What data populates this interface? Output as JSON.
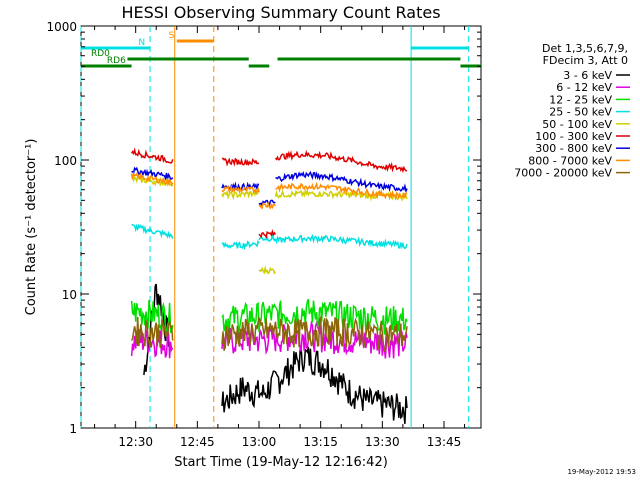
{
  "chart_data": {
    "type": "line",
    "title": "HESSI Observing Summary Count Rates",
    "xlabel": "Start Time (19-May-12 12:16:42)",
    "ylabel": "Count Rate (s⁻¹ detector⁻¹)",
    "yscale": "log",
    "ylim": [
      1,
      1000
    ],
    "xlim": [
      "12:16:42",
      "13:54:00"
    ],
    "x_ticks": [
      "12:30",
      "12:45",
      "13:00",
      "13:15",
      "13:30",
      "13:45"
    ],
    "y_ticks": [
      "1",
      "10",
      "100",
      "1000"
    ],
    "legend_header": [
      "Det 1,3,5,6,7,9,",
      "FDecim 3, Att 0"
    ],
    "legend_placement": "right",
    "series": [
      {
        "name": "3 - 6 keV",
        "color": "#000000",
        "segments": [
          {
            "x": [
              "12:32",
              "12:33",
              "12:34",
              "12:35",
              "12:36",
              "12:37",
              "12:38"
            ],
            "y": [
              2.5,
              4,
              7,
              11,
              9,
              6,
              5
            ]
          },
          {
            "x": [
              "12:51",
              "12:56",
              "13:01",
              "13:06",
              "13:11",
              "13:16",
              "13:21",
              "13:26",
              "13:31",
              "13:36"
            ],
            "y": [
              1.5,
              2,
              1.8,
              2.5,
              3.5,
              3,
              2,
              1.6,
              1.5,
              1.4
            ]
          }
        ]
      },
      {
        "name": "6 - 12 keV",
        "color": "#e000e0",
        "segments": [
          {
            "x": [
              "12:29",
              "12:33",
              "12:37",
              "12:39"
            ],
            "y": [
              4.5,
              4.6,
              4.4,
              4.3
            ]
          },
          {
            "x": [
              "12:51",
              "12:56",
              "13:01",
              "13:06",
              "13:11",
              "13:16",
              "13:21",
              "13:26",
              "13:31",
              "13:36"
            ],
            "y": [
              4.5,
              4.6,
              4.6,
              4.8,
              5,
              4.8,
              4.6,
              4.5,
              4.4,
              4.3
            ]
          }
        ]
      },
      {
        "name": "12 - 25 keV",
        "color": "#00e000",
        "segments": [
          {
            "x": [
              "12:29",
              "12:33",
              "12:37",
              "12:39"
            ],
            "y": [
              7.5,
              7.3,
              7,
              6.8
            ]
          },
          {
            "x": [
              "12:51",
              "12:56",
              "13:01",
              "13:06",
              "13:11",
              "13:16",
              "13:21",
              "13:26",
              "13:31",
              "13:36"
            ],
            "y": [
              6.5,
              6.8,
              7,
              7.2,
              7.5,
              7.3,
              7,
              6.8,
              6.6,
              6.5
            ]
          }
        ]
      },
      {
        "name": "25 - 50 keV",
        "color": "#00e0e0",
        "segments": [
          {
            "x": [
              "12:29",
              "12:33",
              "12:37",
              "12:39"
            ],
            "y": [
              32,
              30,
              28,
              27
            ]
          },
          {
            "x": [
              "12:51",
              "12:55",
              "13:00"
            ],
            "y": [
              23,
              23,
              24
            ]
          },
          {
            "x": [
              "13:00",
              "13:04"
            ],
            "y": [
              26,
              26
            ]
          },
          {
            "x": [
              "13:04",
              "13:10",
              "13:16",
              "13:22",
              "13:28",
              "13:36"
            ],
            "y": [
              25,
              26,
              26,
              25,
              24,
              23
            ]
          }
        ]
      },
      {
        "name": "50 - 100 keV",
        "color": "#d0d000",
        "segments": [
          {
            "x": [
              "12:29",
              "12:33",
              "12:37",
              "12:39"
            ],
            "y": [
              72,
              70,
              68,
              67
            ]
          },
          {
            "x": [
              "12:51",
              "12:55",
              "13:00"
            ],
            "y": [
              55,
              55,
              57
            ]
          },
          {
            "x": [
              "13:00",
              "13:04"
            ],
            "y": [
              15,
              15
            ]
          },
          {
            "x": [
              "13:04",
              "13:10",
              "13:16",
              "13:22",
              "13:28",
              "13:36"
            ],
            "y": [
              55,
              56,
              56,
              55,
              54,
              53
            ]
          }
        ]
      },
      {
        "name": "100 - 300 keV",
        "color": "#e00000",
        "segments": [
          {
            "x": [
              "12:29",
              "12:33",
              "12:37",
              "12:39"
            ],
            "y": [
              115,
              108,
              102,
              97
            ]
          },
          {
            "x": [
              "12:51",
              "12:55",
              "13:00"
            ],
            "y": [
              98,
              97,
              96
            ]
          },
          {
            "x": [
              "13:00",
              "13:04"
            ],
            "y": [
              28,
              28
            ]
          },
          {
            "x": [
              "13:04",
              "13:10",
              "13:16",
              "13:22",
              "13:28",
              "13:36"
            ],
            "y": [
              105,
              110,
              108,
              100,
              90,
              86
            ]
          }
        ]
      },
      {
        "name": "300 - 800 keV",
        "color": "#0000e0",
        "segments": [
          {
            "x": [
              "12:29",
              "12:33",
              "12:37",
              "12:39"
            ],
            "y": [
              84,
              80,
              77,
              74
            ]
          },
          {
            "x": [
              "12:51",
              "12:55",
              "13:00"
            ],
            "y": [
              64,
              63,
              63
            ]
          },
          {
            "x": [
              "13:00",
              "13:04"
            ],
            "y": [
              48,
              48
            ]
          },
          {
            "x": [
              "13:04",
              "13:10",
              "13:16",
              "13:22",
              "13:28",
              "13:36"
            ],
            "y": [
              72,
              78,
              76,
              70,
              64,
              61
            ]
          }
        ]
      },
      {
        "name": "800 - 7000 keV",
        "color": "#ff8c00",
        "segments": [
          {
            "x": [
              "12:29",
              "12:33",
              "12:37",
              "12:39"
            ],
            "y": [
              76,
              73,
              70,
              68
            ]
          },
          {
            "x": [
              "12:51",
              "12:55",
              "13:00"
            ],
            "y": [
              61,
              60,
              60
            ]
          },
          {
            "x": [
              "13:00",
              "13:04"
            ],
            "y": [
              46,
              46
            ]
          },
          {
            "x": [
              "13:04",
              "13:10",
              "13:16",
              "13:22",
              "13:28",
              "13:36"
            ],
            "y": [
              62,
              64,
              63,
              60,
              56,
              54
            ]
          }
        ]
      },
      {
        "name": "7000 - 20000 keV",
        "color": "#8b6508",
        "segments": [
          {
            "x": [
              "12:29",
              "12:33",
              "12:37",
              "12:39"
            ],
            "y": [
              5.5,
              5.3,
              5.2,
              5.1
            ]
          },
          {
            "x": [
              "12:51",
              "12:56",
              "13:01",
              "13:06",
              "13:11",
              "13:16",
              "13:21",
              "13:26",
              "13:31",
              "13:36"
            ],
            "y": [
              5,
              5.2,
              5.4,
              5.3,
              5.2,
              5.4,
              5.3,
              5.1,
              5,
              5
            ]
          }
        ]
      }
    ],
    "vertical_markers": [
      {
        "x": "12:16:42",
        "color": "#00e0e0",
        "style": "dash"
      },
      {
        "x": "12:33:30",
        "color": "#00e0e0",
        "style": "dash"
      },
      {
        "x": "12:39:30",
        "color": "#ff8c00",
        "style": "solid"
      },
      {
        "x": "12:49:00",
        "color": "#ff8c00",
        "style": "dash"
      },
      {
        "x": "13:37:00",
        "color": "#00e0e0",
        "style": "solid"
      },
      {
        "x": "13:51:00",
        "color": "#00e0e0",
        "style": "dash"
      }
    ],
    "status_bars": [
      {
        "label": "N",
        "color": "#00e0e0",
        "segments": [
          {
            "start": "12:16:42",
            "end": "12:33:30"
          },
          {
            "start": "13:37:00",
            "end": "13:51:00"
          }
        ]
      },
      {
        "label": "S",
        "color": "#ff8c00",
        "segments": [
          {
            "start": "12:40:00",
            "end": "12:49:00"
          }
        ]
      },
      {
        "label": "RD0",
        "color": "#008000",
        "segments": [
          {
            "start": "12:28:00",
            "end": "12:57:30"
          },
          {
            "start": "13:04:30",
            "end": "13:49:00"
          }
        ]
      },
      {
        "label": "RD6",
        "color": "#008000",
        "segments": [
          {
            "start": "12:16:42",
            "end": "12:29:00"
          },
          {
            "start": "12:57:30",
            "end": "13:02:30"
          },
          {
            "start": "13:49:00",
            "end": "13:54:00"
          }
        ]
      }
    ]
  },
  "footer": {
    "date_stamp": "19-May-2012 19:53"
  }
}
